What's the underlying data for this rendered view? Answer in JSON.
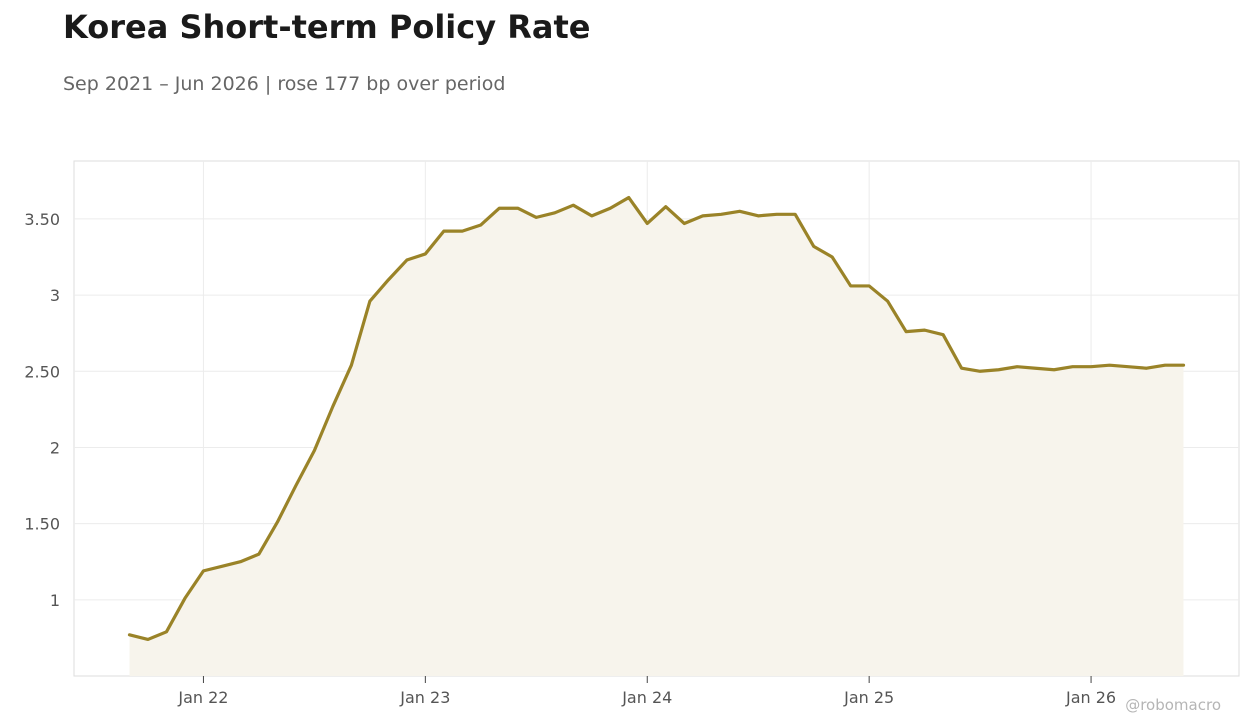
{
  "chart_data": {
    "type": "area",
    "title": "Korea Short-term Policy Rate",
    "subtitle": "Sep 2021 – Jun 2026 | rose 177 bp over period",
    "xlabel": "",
    "ylabel": "",
    "x_tick_labels": [
      "Jan 22",
      "Jan 23",
      "Jan 24",
      "Jan 25",
      "Jan 26"
    ],
    "x_tick_dates": [
      "2022-01",
      "2023-01",
      "2024-01",
      "2025-01",
      "2026-01"
    ],
    "y_tick_values": [
      1,
      1.5,
      2,
      2.5,
      3,
      3.5
    ],
    "y_tick_labels": [
      "1",
      "1.50",
      "2",
      "2.50",
      "3",
      "3.50"
    ],
    "ylim": [
      0.5,
      3.88
    ],
    "xlim": [
      "2021-06",
      "2026-09"
    ],
    "grid": true,
    "line_color": "#9a8328",
    "fill_color": "#f7f4ec",
    "watermark": "@robomacro",
    "series": [
      {
        "x": [
          "2021-09",
          "2021-10",
          "2021-11",
          "2021-12",
          "2022-01",
          "2022-02",
          "2022-03",
          "2022-04",
          "2022-05",
          "2022-06",
          "2022-07",
          "2022-08",
          "2022-09",
          "2022-10",
          "2022-11",
          "2022-12",
          "2023-01",
          "2023-02",
          "2023-03",
          "2023-04",
          "2023-05",
          "2023-06",
          "2023-07",
          "2023-08",
          "2023-09",
          "2023-10",
          "2023-11",
          "2023-12",
          "2024-01",
          "2024-02",
          "2024-03",
          "2024-04",
          "2024-05",
          "2024-06",
          "2024-07",
          "2024-08",
          "2024-09",
          "2024-10",
          "2024-11",
          "2024-12",
          "2025-01",
          "2025-02",
          "2025-03",
          "2025-04",
          "2025-05",
          "2025-06",
          "2025-07",
          "2025-08",
          "2025-09",
          "2025-10",
          "2025-11",
          "2025-12",
          "2026-01",
          "2026-02",
          "2026-03",
          "2026-04",
          "2026-05",
          "2026-06"
        ],
        "values": [
          0.77,
          0.74,
          0.79,
          1.01,
          1.19,
          1.22,
          1.25,
          1.3,
          1.51,
          1.75,
          1.98,
          2.27,
          2.54,
          2.96,
          3.1,
          3.23,
          3.27,
          3.42,
          3.42,
          3.46,
          3.57,
          3.57,
          3.51,
          3.54,
          3.59,
          3.52,
          3.57,
          3.64,
          3.47,
          3.58,
          3.47,
          3.52,
          3.53,
          3.55,
          3.52,
          3.53,
          3.53,
          3.32,
          3.25,
          3.06,
          3.06,
          2.96,
          2.76,
          2.77,
          2.74,
          2.52,
          2.5,
          2.51,
          2.53,
          2.52,
          2.51,
          2.53,
          2.53,
          2.54,
          2.53,
          2.52,
          2.54,
          2.54
        ]
      }
    ]
  }
}
